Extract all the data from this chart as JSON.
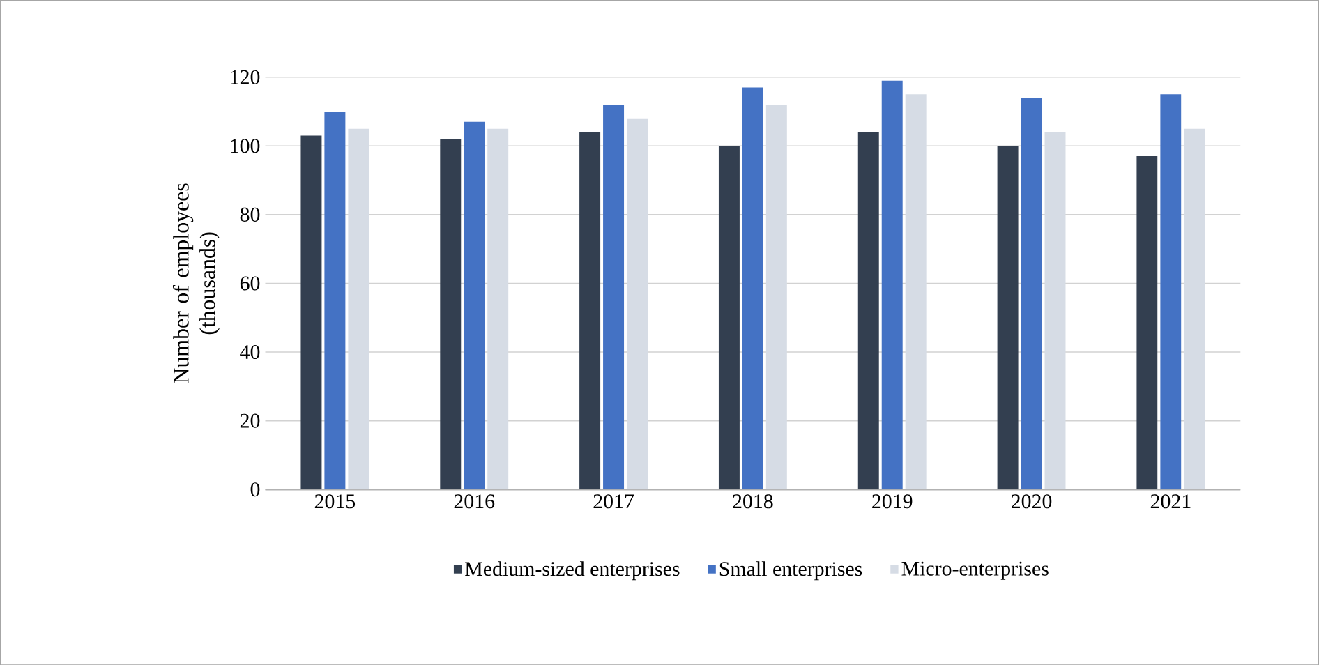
{
  "chart_data": {
    "type": "bar",
    "ylabel": "Number of employees (thousands)",
    "categories": [
      "2015",
      "2016",
      "2017",
      "2018",
      "2019",
      "2020",
      "2021"
    ],
    "series": [
      {
        "name": "Medium-sized enterprises",
        "color": "#333f50",
        "values": [
          103,
          102,
          104,
          100,
          104,
          100,
          97
        ]
      },
      {
        "name": "Small enterprises",
        "color": "#4472c4",
        "values": [
          110,
          107,
          112,
          117,
          119,
          114,
          115
        ]
      },
      {
        "name": "Micro-enterprises",
        "color": "#d6dce5",
        "values": [
          105,
          105,
          108,
          112,
          115,
          104,
          105
        ]
      }
    ],
    "ylim": [
      0,
      120
    ],
    "yticks": [
      0,
      20,
      40,
      60,
      80,
      100,
      120
    ],
    "grid": "y",
    "legend": "bottom"
  }
}
